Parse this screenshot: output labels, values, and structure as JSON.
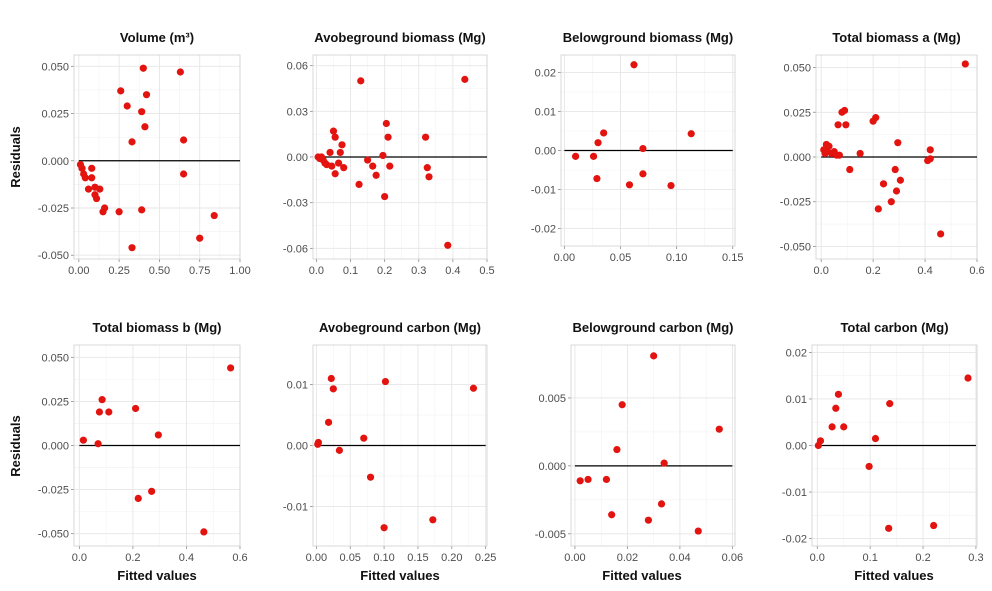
{
  "figure": {
    "y_axis_title": "Residuals",
    "x_axis_title": "Fitted values"
  },
  "chart_data": [
    {
      "type": "scatter",
      "title": "Volume (m³)",
      "xlim": [
        -0.03,
        1.0
      ],
      "ylim": [
        -0.052,
        0.056
      ],
      "xticks": [
        0,
        0.25,
        0.5,
        0.75,
        1.0
      ],
      "xtick_labels": [
        "0.00",
        "0.25",
        "0.50",
        "0.75",
        "1.00"
      ],
      "yticks": [
        -0.05,
        -0.025,
        0,
        0.025,
        0.05
      ],
      "ytick_labels": [
        "-0.050",
        "-0.025",
        "0.000",
        "0.025",
        "0.050"
      ],
      "zero_line": [
        0,
        1.0
      ],
      "points": [
        [
          0.01,
          -0.002
        ],
        [
          0.02,
          -0.004
        ],
        [
          0.03,
          -0.007
        ],
        [
          0.04,
          -0.009
        ],
        [
          0.06,
          -0.015
        ],
        [
          0.08,
          -0.009
        ],
        [
          0.08,
          -0.004
        ],
        [
          0.1,
          -0.014
        ],
        [
          0.1,
          -0.018
        ],
        [
          0.11,
          -0.02
        ],
        [
          0.13,
          -0.015
        ],
        [
          0.15,
          -0.027
        ],
        [
          0.16,
          -0.025
        ],
        [
          0.25,
          -0.027
        ],
        [
          0.26,
          0.037
        ],
        [
          0.3,
          0.029
        ],
        [
          0.33,
          0.01
        ],
        [
          0.33,
          -0.046
        ],
        [
          0.39,
          0.026
        ],
        [
          0.39,
          -0.026
        ],
        [
          0.4,
          0.049
        ],
        [
          0.41,
          0.018
        ],
        [
          0.42,
          0.035
        ],
        [
          0.63,
          0.047
        ],
        [
          0.65,
          0.011
        ],
        [
          0.65,
          -0.007
        ],
        [
          0.75,
          -0.041
        ],
        [
          0.84,
          -0.029
        ]
      ]
    },
    {
      "type": "scatter",
      "title": "Avobeground biomass (Mg)",
      "xlim": [
        -0.01,
        0.5
      ],
      "ylim": [
        -0.067,
        0.067
      ],
      "xticks": [
        0,
        0.1,
        0.2,
        0.3,
        0.4,
        0.5
      ],
      "xtick_labels": [
        "0.0",
        "0.1",
        "0.2",
        "0.3",
        "0.4",
        "0.5"
      ],
      "yticks": [
        -0.06,
        -0.03,
        0,
        0.03,
        0.06
      ],
      "ytick_labels": [
        "-0.06",
        "-0.03",
        "0.00",
        "0.03",
        "0.06"
      ],
      "zero_line": [
        0,
        0.5
      ],
      "points": [
        [
          0.005,
          0.0
        ],
        [
          0.01,
          -0.001
        ],
        [
          0.015,
          0.0
        ],
        [
          0.02,
          -0.002
        ],
        [
          0.025,
          -0.004
        ],
        [
          0.03,
          -0.005
        ],
        [
          0.04,
          0.003
        ],
        [
          0.045,
          -0.006
        ],
        [
          0.05,
          0.017
        ],
        [
          0.055,
          0.013
        ],
        [
          0.055,
          -0.011
        ],
        [
          0.065,
          -0.004
        ],
        [
          0.07,
          0.003
        ],
        [
          0.075,
          0.008
        ],
        [
          0.08,
          -0.007
        ],
        [
          0.125,
          -0.018
        ],
        [
          0.13,
          0.05
        ],
        [
          0.15,
          -0.002
        ],
        [
          0.165,
          -0.006
        ],
        [
          0.175,
          -0.012
        ],
        [
          0.195,
          0.001
        ],
        [
          0.2,
          -0.026
        ],
        [
          0.205,
          0.022
        ],
        [
          0.21,
          0.013
        ],
        [
          0.215,
          -0.006
        ],
        [
          0.32,
          0.013
        ],
        [
          0.325,
          -0.007
        ],
        [
          0.33,
          -0.013
        ],
        [
          0.385,
          -0.058
        ],
        [
          0.435,
          0.051
        ]
      ]
    },
    {
      "type": "scatter",
      "title": "Belowground biomass (Mg)",
      "xlim": [
        -0.003,
        0.152
      ],
      "ylim": [
        -0.0245,
        0.0245
      ],
      "xticks": [
        0,
        0.05,
        0.1,
        0.15
      ],
      "xtick_labels": [
        "0.00",
        "0.05",
        "0.10",
        "0.15"
      ],
      "yticks": [
        -0.02,
        -0.01,
        0,
        0.01,
        0.02
      ],
      "ytick_labels": [
        "-0.02",
        "-0.01",
        "0.00",
        "0.01",
        "0.02"
      ],
      "zero_line": [
        0,
        0.15
      ],
      "points": [
        [
          0.01,
          -0.0015
        ],
        [
          0.026,
          -0.0015
        ],
        [
          0.029,
          -0.0072
        ],
        [
          0.03,
          0.002
        ],
        [
          0.035,
          0.0045
        ],
        [
          0.058,
          -0.0088
        ],
        [
          0.062,
          0.022
        ],
        [
          0.07,
          0.0005
        ],
        [
          0.07,
          -0.006
        ],
        [
          0.095,
          -0.009
        ],
        [
          0.113,
          0.0043
        ]
      ]
    },
    {
      "type": "scatter",
      "title": "Total biomass a (Mg)",
      "xlim": [
        -0.02,
        0.6
      ],
      "ylim": [
        -0.057,
        0.057
      ],
      "xticks": [
        0,
        0.2,
        0.4,
        0.6
      ],
      "xtick_labels": [
        "0.0",
        "0.2",
        "0.4",
        "0.6"
      ],
      "yticks": [
        -0.05,
        -0.025,
        0,
        0.025,
        0.05
      ],
      "ytick_labels": [
        "-0.050",
        "-0.025",
        "0.000",
        "0.025",
        "0.050"
      ],
      "zero_line": [
        0,
        0.6
      ],
      "points": [
        [
          0.01,
          0.004
        ],
        [
          0.015,
          0.002
        ],
        [
          0.02,
          0.007
        ],
        [
          0.025,
          0.003
        ],
        [
          0.03,
          0.006
        ],
        [
          0.04,
          0.002
        ],
        [
          0.05,
          0.003
        ],
        [
          0.06,
          0.001
        ],
        [
          0.065,
          0.018
        ],
        [
          0.07,
          0.001
        ],
        [
          0.08,
          0.025
        ],
        [
          0.09,
          0.026
        ],
        [
          0.095,
          0.018
        ],
        [
          0.11,
          -0.007
        ],
        [
          0.15,
          0.002
        ],
        [
          0.2,
          0.02
        ],
        [
          0.21,
          0.022
        ],
        [
          0.22,
          -0.029
        ],
        [
          0.24,
          -0.015
        ],
        [
          0.27,
          -0.025
        ],
        [
          0.285,
          -0.007
        ],
        [
          0.29,
          -0.019
        ],
        [
          0.295,
          0.008
        ],
        [
          0.305,
          -0.013
        ],
        [
          0.41,
          -0.002
        ],
        [
          0.42,
          0.004
        ],
        [
          0.42,
          -0.001
        ],
        [
          0.46,
          -0.043
        ],
        [
          0.555,
          0.052
        ]
      ]
    },
    {
      "type": "scatter",
      "title": "Total biomass b (Mg)",
      "xlim": [
        -0.02,
        0.6
      ],
      "ylim": [
        -0.057,
        0.057
      ],
      "xticks": [
        0,
        0.2,
        0.4,
        0.6
      ],
      "xtick_labels": [
        "0.0",
        "0.2",
        "0.4",
        "0.6"
      ],
      "yticks": [
        -0.05,
        -0.025,
        0,
        0.025,
        0.05
      ],
      "ytick_labels": [
        "-0.050",
        "-0.025",
        "0.000",
        "0.025",
        "0.050"
      ],
      "zero_line": [
        0,
        0.6
      ],
      "points": [
        [
          0.015,
          0.003
        ],
        [
          0.07,
          0.001
        ],
        [
          0.075,
          0.019
        ],
        [
          0.085,
          0.026
        ],
        [
          0.11,
          0.019
        ],
        [
          0.21,
          0.021
        ],
        [
          0.22,
          -0.03
        ],
        [
          0.27,
          -0.026
        ],
        [
          0.295,
          0.006
        ],
        [
          0.465,
          -0.049
        ],
        [
          0.565,
          0.044
        ]
      ]
    },
    {
      "type": "scatter",
      "title": "Avobeground carbon (Mg)",
      "xlim": [
        -0.005,
        0.252
      ],
      "ylim": [
        -0.0165,
        0.0165
      ],
      "xticks": [
        0,
        0.05,
        0.1,
        0.15,
        0.2,
        0.25
      ],
      "xtick_labels": [
        "0.00",
        "0.05",
        "0.10",
        "0.15",
        "0.20",
        "0.25"
      ],
      "yticks": [
        -0.01,
        0,
        0.01
      ],
      "ytick_labels": [
        "-0.01",
        "0.00",
        "0.01"
      ],
      "zero_line": [
        0,
        0.25
      ],
      "points": [
        [
          0.002,
          0.0002
        ],
        [
          0.003,
          0.0005
        ],
        [
          0.018,
          0.0038
        ],
        [
          0.022,
          0.011
        ],
        [
          0.025,
          0.0093
        ],
        [
          0.034,
          -0.0008
        ],
        [
          0.07,
          0.0012
        ],
        [
          0.08,
          -0.0052
        ],
        [
          0.1,
          -0.0135
        ],
        [
          0.102,
          0.0105
        ],
        [
          0.172,
          -0.0122
        ],
        [
          0.232,
          0.0094
        ]
      ]
    },
    {
      "type": "scatter",
      "title": "Belowground carbon (Mg)",
      "xlim": [
        -0.0015,
        0.061
      ],
      "ylim": [
        -0.0059,
        0.0089
      ],
      "xticks": [
        0,
        0.02,
        0.04,
        0.06
      ],
      "xtick_labels": [
        "0.00",
        "0.02",
        "0.04",
        "0.06"
      ],
      "yticks": [
        -0.005,
        0,
        0.005
      ],
      "ytick_labels": [
        "-0.005",
        "0.000",
        "0.005"
      ],
      "zero_line": [
        0,
        0.06
      ],
      "points": [
        [
          0.002,
          -0.0011
        ],
        [
          0.005,
          -0.001
        ],
        [
          0.012,
          -0.001
        ],
        [
          0.014,
          -0.0036
        ],
        [
          0.016,
          0.0012
        ],
        [
          0.018,
          0.0045
        ],
        [
          0.028,
          -0.004
        ],
        [
          0.03,
          0.0081
        ],
        [
          0.033,
          -0.0028
        ],
        [
          0.034,
          0.0002
        ],
        [
          0.047,
          -0.0048
        ],
        [
          0.055,
          0.0027
        ]
      ]
    },
    {
      "type": "scatter",
      "title": "Total carbon (Mg)",
      "xlim": [
        -0.01,
        0.302
      ],
      "ylim": [
        -0.0216,
        0.0216
      ],
      "xticks": [
        0,
        0.1,
        0.2,
        0.3
      ],
      "xtick_labels": [
        "0.0",
        "0.1",
        "0.2",
        "0.3"
      ],
      "yticks": [
        -0.02,
        -0.01,
        0,
        0.01,
        0.02
      ],
      "ytick_labels": [
        "-0.02",
        "-0.01",
        "0.00",
        "0.01",
        "0.02"
      ],
      "zero_line": [
        0,
        0.3
      ],
      "points": [
        [
          0.002,
          0.0
        ],
        [
          0.006,
          0.001
        ],
        [
          0.028,
          0.004
        ],
        [
          0.035,
          0.008
        ],
        [
          0.04,
          0.011
        ],
        [
          0.05,
          0.004
        ],
        [
          0.098,
          -0.0045
        ],
        [
          0.11,
          0.0015
        ],
        [
          0.135,
          -0.0178
        ],
        [
          0.137,
          0.009
        ],
        [
          0.22,
          -0.0172
        ],
        [
          0.285,
          0.0145
        ]
      ]
    }
  ]
}
